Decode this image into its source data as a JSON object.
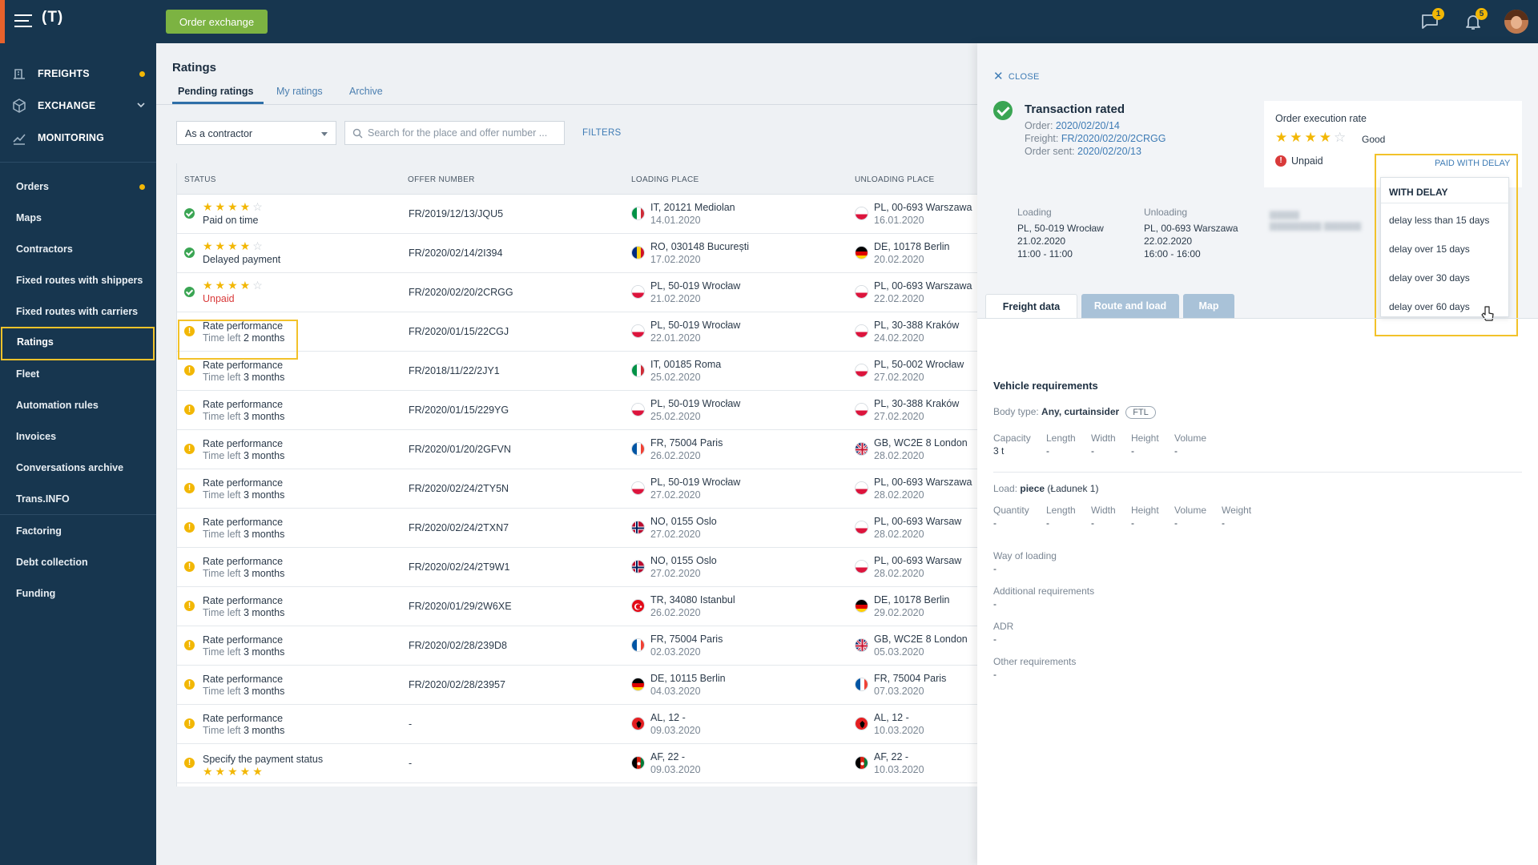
{
  "topbar": {
    "logo": "(T)",
    "order_exchange_label": "Order exchange",
    "messages_badge": "1",
    "notifications_badge": "5"
  },
  "sidebar": {
    "top_items": [
      {
        "label": "FREIGHTS",
        "icon": "freights-icon"
      },
      {
        "label": "EXCHANGE",
        "icon": "exchange-icon"
      },
      {
        "label": "MONITORING",
        "icon": "monitoring-icon"
      }
    ],
    "items": [
      {
        "label": "Orders"
      },
      {
        "label": "Maps"
      },
      {
        "label": "Contractors"
      },
      {
        "label": "Fixed routes with shippers"
      },
      {
        "label": "Fixed routes with carriers"
      },
      {
        "label": "Ratings"
      },
      {
        "label": "Fleet"
      },
      {
        "label": "Automation rules"
      },
      {
        "label": "Invoices"
      },
      {
        "label": "Conversations archive"
      },
      {
        "label": "Trans.INFO"
      },
      {
        "label": "Factoring"
      },
      {
        "label": "Debt collection"
      },
      {
        "label": "Funding"
      }
    ]
  },
  "main": {
    "title": "Ratings",
    "tabs": [
      {
        "label": "Pending ratings"
      },
      {
        "label": "My ratings"
      },
      {
        "label": "Archive"
      }
    ],
    "role_select": "As a contractor",
    "search_placeholder": "Search for the place and offer number ...",
    "filters_label": "FILTERS",
    "columns": [
      "STATUS",
      "OFFER NUMBER",
      "LOADING PLACE",
      "UNLOADING PLACE"
    ],
    "rows": [
      {
        "status": "rated",
        "stars": "★★★★",
        "stars_empty": "☆",
        "line2": "Paid on time",
        "offer": "FR/2019/12/13/JQU5",
        "load_flag": "IT",
        "load_place": "IT, 20121 Mediolan",
        "load_date": "14.01.2020",
        "unload_flag": "PL",
        "unload_place": "PL, 00-693 Warszawa",
        "unload_date": "16.01.2020"
      },
      {
        "status": "rated",
        "stars": "★★★★",
        "stars_empty": "☆",
        "line2": "Delayed payment",
        "offer": "FR/2020/02/14/2I394",
        "load_flag": "RO",
        "load_place": "RO, 030148 București",
        "load_date": "17.02.2020",
        "unload_flag": "DE",
        "unload_place": "DE, 10178 Berlin",
        "unload_date": "20.02.2020"
      },
      {
        "status": "rated",
        "stars": "★★★★",
        "stars_empty": "☆",
        "line2": "Unpaid",
        "offer": "FR/2020/02/20/2CRGG",
        "load_flag": "PL",
        "load_place": "PL, 50-019 Wrocław",
        "load_date": "21.02.2020",
        "unload_flag": "PL",
        "unload_place": "PL, 00-693 Warszawa",
        "unload_date": "22.02.2020"
      },
      {
        "status": "pending",
        "line1": "Rate performance",
        "time_left": "Time left",
        "time_val": "2 months",
        "offer": "FR/2020/01/15/22CGJ",
        "load_flag": "PL",
        "load_place": "PL, 50-019 Wrocław",
        "load_date": "22.01.2020",
        "unload_flag": "PL",
        "unload_place": "PL, 30-388 Kraków",
        "unload_date": "24.02.2020"
      },
      {
        "status": "pending",
        "line1": "Rate performance",
        "time_left": "Time left",
        "time_val": "3 months",
        "offer": "FR/2018/11/22/2JY1",
        "load_flag": "IT",
        "load_place": "IT, 00185 Roma",
        "load_date": "25.02.2020",
        "unload_flag": "PL",
        "unload_place": "PL, 50-002 Wrocław",
        "unload_date": "27.02.2020"
      },
      {
        "status": "pending",
        "line1": "Rate performance",
        "time_left": "Time left",
        "time_val": "3 months",
        "offer": "FR/2020/01/15/229YG",
        "load_flag": "PL",
        "load_place": "PL, 50-019 Wrocław",
        "load_date": "25.02.2020",
        "unload_flag": "PL",
        "unload_place": "PL, 30-388 Kraków",
        "unload_date": "27.02.2020"
      },
      {
        "status": "pending",
        "line1": "Rate performance",
        "time_left": "Time left",
        "time_val": "3 months",
        "offer": "FR/2020/01/20/2GFVN",
        "load_flag": "FR",
        "load_place": "FR, 75004 Paris",
        "load_date": "26.02.2020",
        "unload_flag": "GB",
        "unload_place": "GB, WC2E 8 London",
        "unload_date": "28.02.2020"
      },
      {
        "status": "pending",
        "line1": "Rate performance",
        "time_left": "Time left",
        "time_val": "3 months",
        "offer": "FR/2020/02/24/2TY5N",
        "load_flag": "PL",
        "load_place": "PL, 50-019 Wrocław",
        "load_date": "27.02.2020",
        "unload_flag": "PL",
        "unload_place": "PL, 00-693 Warszawa",
        "unload_date": "28.02.2020"
      },
      {
        "status": "pending",
        "line1": "Rate performance",
        "time_left": "Time left",
        "time_val": "3 months",
        "offer": "FR/2020/02/24/2TXN7",
        "load_flag": "NO",
        "load_place": "NO, 0155 Oslo",
        "load_date": "27.02.2020",
        "unload_flag": "PL",
        "unload_place": "PL, 00-693 Warsaw",
        "unload_date": "28.02.2020"
      },
      {
        "status": "pending",
        "line1": "Rate performance",
        "time_left": "Time left",
        "time_val": "3 months",
        "offer": "FR/2020/02/24/2T9W1",
        "load_flag": "NO",
        "load_place": "NO, 0155 Oslo",
        "load_date": "27.02.2020",
        "unload_flag": "PL",
        "unload_place": "PL, 00-693 Warsaw",
        "unload_date": "28.02.2020"
      },
      {
        "status": "pending",
        "line1": "Rate performance",
        "time_left": "Time left",
        "time_val": "3 months",
        "offer": "FR/2020/01/29/2W6XE",
        "load_flag": "TR",
        "load_place": "TR, 34080 Istanbul",
        "load_date": "26.02.2020",
        "unload_flag": "DE",
        "unload_place": "DE, 10178 Berlin",
        "unload_date": "29.02.2020"
      },
      {
        "status": "pending",
        "line1": "Rate performance",
        "time_left": "Time left",
        "time_val": "3 months",
        "offer": "FR/2020/02/28/239D8",
        "load_flag": "FR",
        "load_place": "FR, 75004 Paris",
        "load_date": "02.03.2020",
        "unload_flag": "GB",
        "unload_place": "GB, WC2E 8 London",
        "unload_date": "05.03.2020"
      },
      {
        "status": "pending",
        "line1": "Rate performance",
        "time_left": "Time left",
        "time_val": "3 months",
        "offer": "FR/2020/02/28/23957",
        "load_flag": "DE",
        "load_place": "DE, 10115 Berlin",
        "load_date": "04.03.2020",
        "unload_flag": "FR",
        "unload_place": "FR, 75004 Paris",
        "unload_date": "07.03.2020"
      },
      {
        "status": "pending",
        "line1": "Rate performance",
        "time_left": "Time left",
        "time_val": "3 months",
        "offer": "-",
        "load_flag": "AL",
        "load_place": "AL, 12 -",
        "load_date": "09.03.2020",
        "unload_flag": "AL",
        "unload_place": "AL, 12 -",
        "unload_date": "10.03.2020"
      },
      {
        "status": "payment",
        "line1": "Specify the payment status",
        "stars": "★★★★★",
        "offer": "-",
        "load_flag": "AF",
        "load_place": "AF, 22 -",
        "load_date": "09.03.2020",
        "unload_flag": "AF",
        "unload_place": "AF, 22 -",
        "unload_date": "10.03.2020"
      }
    ]
  },
  "panel": {
    "close_label": "CLOSE",
    "title": "Transaction rated",
    "order_label": "Order:",
    "order_value": "2020/02/20/14",
    "freight_label": "Freight:",
    "freight_value": "FR/2020/02/20/2CRGG",
    "sent_label": "Order sent:",
    "sent_value": "2020/02/20/13",
    "rate_label": "Order execution rate",
    "rate_stars": "★★★★",
    "rate_stars_empty": "☆",
    "rate_text": "Good",
    "unpaid_label": "Unpaid",
    "paid_with_delay_link": "PAID WITH DELAY",
    "dropdown": {
      "header": "WITH DELAY",
      "items": [
        "delay less than 15 days",
        "delay over 15 days",
        "delay over 30 days",
        "delay over 60 days"
      ]
    },
    "loading": {
      "label": "Loading",
      "place": "PL, 50-019 Wrocław",
      "date": "21.02.2020",
      "time": "11:00 - 11:00"
    },
    "unloading": {
      "label": "Unloading",
      "place": "PL, 00-693 Warszawa",
      "date": "22.02.2020",
      "time": "16:00 - 16:00"
    },
    "tabs": [
      "Freight data",
      "Route and load",
      "Map"
    ],
    "vehicle_title": "Vehicle requirements",
    "body_type_label": "Body type:",
    "body_type_value": "Any, curtainsider",
    "ftl_badge": "FTL",
    "vehicle_cols": [
      "Capacity",
      "Length",
      "Width",
      "Height",
      "Volume"
    ],
    "vehicle_vals": [
      "3 t",
      "-",
      "-",
      "-",
      "-"
    ],
    "load_label": "Load:",
    "load_value": "piece",
    "load_detail": "(Ładunek 1)",
    "load_cols": [
      "Quantity",
      "Length",
      "Width",
      "Height",
      "Volume",
      "Weight"
    ],
    "load_vals": [
      "-",
      "-",
      "-",
      "-",
      "-",
      "-"
    ],
    "way_label": "Way of loading",
    "way_value": "-",
    "additional_label": "Additional requirements",
    "additional_value": "-",
    "adr_label": "ADR",
    "adr_value": "-",
    "other_label": "Other requirements",
    "other_value": "-"
  },
  "colors": {
    "navy": "#17364f",
    "green": "#7cb342",
    "accent_yellow": "#f2b705",
    "highlight": "#f2c22a",
    "link_blue": "#3f7cb5"
  }
}
